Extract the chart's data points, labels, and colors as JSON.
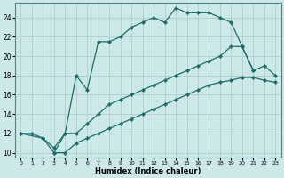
{
  "xlabel": "Humidex (Indice chaleur)",
  "ylabel": "",
  "xlim": [
    -0.5,
    23.5
  ],
  "ylim": [
    9.5,
    25.5
  ],
  "xticks": [
    0,
    1,
    2,
    3,
    4,
    5,
    6,
    7,
    8,
    9,
    10,
    11,
    12,
    13,
    14,
    15,
    16,
    17,
    18,
    19,
    20,
    21,
    22,
    23
  ],
  "yticks": [
    10,
    12,
    14,
    16,
    18,
    20,
    22,
    24
  ],
  "bg_color": "#cde8e8",
  "grid_color": "#b0cecc",
  "line_color": "#1a6e6a",
  "curve1_x": [
    0,
    1,
    2,
    3,
    4,
    5,
    6,
    7,
    8,
    9,
    10,
    11,
    12,
    13,
    14,
    15,
    16,
    17,
    18,
    19,
    20,
    21
  ],
  "curve1_y": [
    12.0,
    12.0,
    11.5,
    10.5,
    12.0,
    18.0,
    16.5,
    21.5,
    21.5,
    22.0,
    23.0,
    23.5,
    24.0,
    23.5,
    25.0,
    24.5,
    24.5,
    24.5,
    24.0,
    23.5,
    21.0,
    18.5
  ],
  "curve2_x": [
    0,
    2,
    3,
    4,
    5,
    6,
    7,
    8,
    9,
    10,
    11,
    12,
    13,
    14,
    15,
    16,
    17,
    18,
    19,
    20,
    21,
    22,
    23
  ],
  "curve2_y": [
    12.0,
    11.5,
    10.0,
    12.0,
    12.0,
    13.0,
    14.0,
    15.0,
    15.5,
    16.0,
    16.5,
    17.0,
    17.5,
    18.0,
    18.5,
    19.0,
    19.5,
    20.0,
    21.0,
    21.0,
    18.5,
    19.0,
    18.0
  ],
  "curve3_x": [
    3,
    4,
    5,
    6,
    7,
    8,
    9,
    10,
    11,
    12,
    13,
    14,
    15,
    16,
    17,
    18,
    19,
    20,
    21,
    22,
    23
  ],
  "curve3_y": [
    10.0,
    10.0,
    11.0,
    11.5,
    12.0,
    12.5,
    13.0,
    13.5,
    14.0,
    14.5,
    15.0,
    15.5,
    16.0,
    16.5,
    17.0,
    17.3,
    17.5,
    17.8,
    17.8,
    17.5,
    17.3
  ],
  "marker": "D",
  "markersize": 2.2,
  "linewidth": 0.9
}
